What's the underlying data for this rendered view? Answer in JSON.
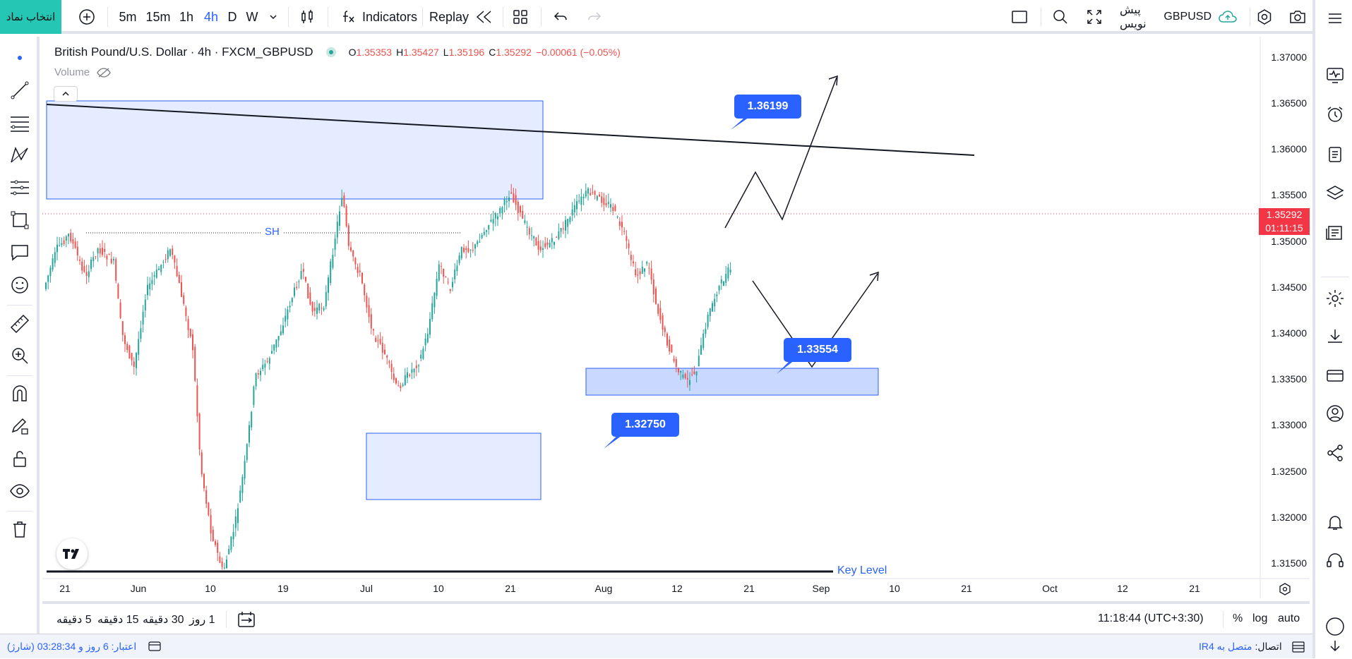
{
  "topbar": {
    "pick_symbol": "انتخاب نماد",
    "intervals": [
      "5m",
      "15m",
      "1h",
      "4h",
      "D",
      "W"
    ],
    "active_interval": "4h",
    "indicators": "Indicators",
    "replay": "Replay",
    "symbol": "GBPUSD",
    "publish": "پیش نویس"
  },
  "legend": {
    "title": "British Pound/U.S. Dollar · 4h · FXCM_GBPUSD",
    "o_label": "O",
    "o": "1.35353",
    "h_label": "H",
    "h": "1.35427",
    "l_label": "L",
    "l": "1.35196",
    "c_label": "C",
    "c": "1.35292",
    "change": "−0.00061 (−0.05%)",
    "volume": "Volume"
  },
  "price_axis": [
    "1.37000",
    "1.36500",
    "1.36000",
    "1.35500",
    "1.35000",
    "1.34500",
    "1.34000",
    "1.33500",
    "1.33000",
    "1.32500",
    "1.32000",
    "1.31500"
  ],
  "current_price": {
    "price": "1.35292",
    "countdown": "01:11:15"
  },
  "time_axis": [
    "21",
    "Jun",
    "10",
    "19",
    "Jul",
    "10",
    "21",
    "Aug",
    "12",
    "21",
    "Sep",
    "10",
    "21",
    "Oct",
    "12",
    "21"
  ],
  "annotations": {
    "callout_top": "1.36199",
    "callout_mid": "1.33554",
    "callout_low": "1.32750",
    "sh": "SH",
    "key_level": "Key Level"
  },
  "bottom": {
    "ranges": [
      "5 دقیقه",
      "15 دقیقه",
      "30 دقیقه",
      "1 روز"
    ],
    "clock": "11:18:44 (UTC+3:30)",
    "percent": "%",
    "log": "log",
    "auto": "auto"
  },
  "status": {
    "credit": "اعتبار: 6 روز و 03:28:34 (شارژ)",
    "connection_label": "اتصال:",
    "connection_value": "متصل به IR4"
  },
  "colors": {
    "accent": "#2962ff",
    "up": "#26a69a",
    "down": "#ef5350",
    "teal_button": "#26c6b4"
  }
}
